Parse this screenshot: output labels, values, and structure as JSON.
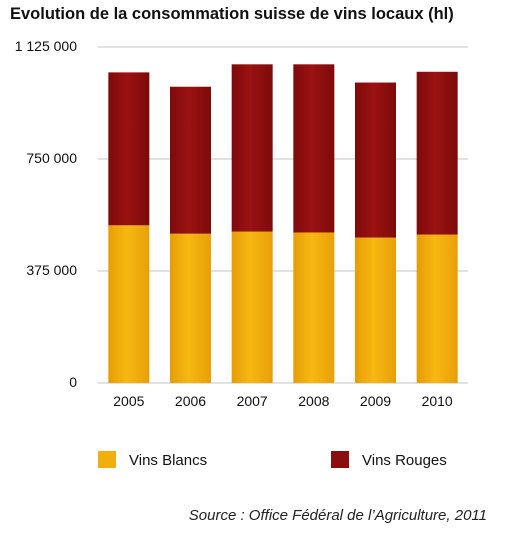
{
  "chart_data": {
    "type": "bar",
    "stacked": true,
    "title": "Evolution de la consommation suisse de vins locaux (hl)",
    "xlabel": "",
    "ylabel": "",
    "categories": [
      "2005",
      "2006",
      "2007",
      "2008",
      "2009",
      "2010"
    ],
    "series": [
      {
        "name": "Vins Blancs",
        "color": "#f2ae0c",
        "values": [
          528000,
          500000,
          507000,
          504000,
          487000,
          497000
        ]
      },
      {
        "name": "Vins Rouges",
        "color": "#8c0d0d",
        "values": [
          512000,
          492000,
          560000,
          563000,
          519000,
          545000
        ]
      }
    ],
    "ylim": [
      0,
      1125000
    ],
    "yticks": [
      0,
      375000,
      750000,
      1125000
    ],
    "ytick_labels": [
      "0",
      "375 000",
      "750 000",
      "1 125 000"
    ],
    "grid": true,
    "legend_position": "bottom"
  },
  "source": "Source : Office Fédéral de l’Agriculture, 2011"
}
